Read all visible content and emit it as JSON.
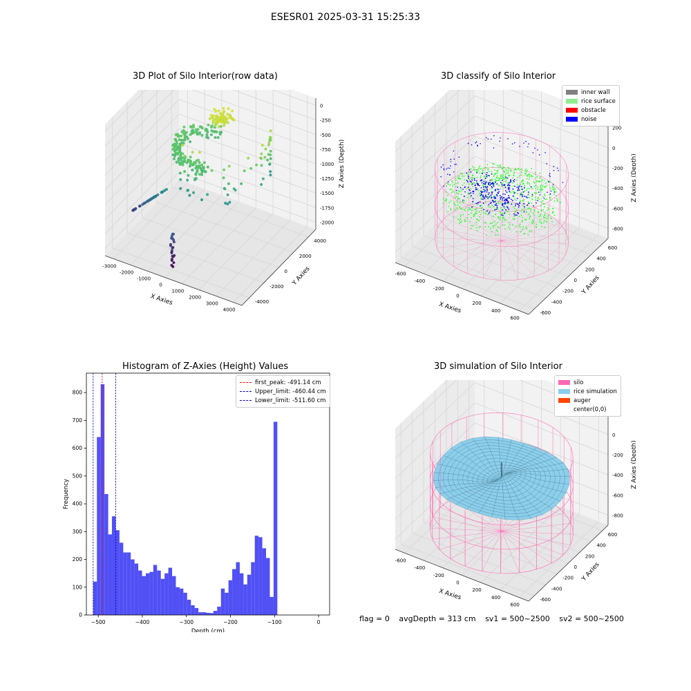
{
  "suptitle": "ESESR01 2025-03-31 15:25:33",
  "footer": {
    "flag": "flag = 0",
    "avg_depth": "avgDepth = 313 cm",
    "sv1": "sv1 = 500~2500",
    "sv2": "sv2 = 500~2500"
  },
  "colors": {
    "inner_wall": "#808080",
    "rice_surface": "#90ee90",
    "obstacle": "#ff0000",
    "noise": "#0000ff",
    "silo": "#ff69b4",
    "rice_simulation": "#87ceeb",
    "auger": "#ff4500",
    "hist_bar": "#5050f5",
    "first_peak": "#ff0000",
    "limits": "#0000cc"
  },
  "chart_data": [
    {
      "type": "scatter3d",
      "title": "3D Plot of Silo Interior(row data)",
      "xlabel": "X Axies",
      "ylabel": "Y Axies",
      "zlabel": "Z Axies (Depth)",
      "xticks": [
        "-3000",
        "-2000",
        "-1000",
        "0",
        "1000",
        "2000",
        "3000",
        "4000"
      ],
      "yticks": [
        "-4000",
        "-2000",
        "0",
        "2000",
        "4000"
      ],
      "zticks": [
        "0",
        "-250",
        "-500",
        "-750",
        "-1000",
        "-1250",
        "-1500",
        "-1750",
        "-2000"
      ],
      "colormap": "viridis"
    },
    {
      "type": "scatter3d",
      "title": "3D classify of Silo Interior",
      "xlabel": "X Axies",
      "ylabel": "Y Axies",
      "zlabel": "Z Axies (Depth)",
      "xticks": [
        "-600",
        "-400",
        "-200",
        "0",
        "200",
        "400",
        "600"
      ],
      "yticks": [
        "-600",
        "-400",
        "-200",
        "0",
        "200",
        "400",
        "600"
      ],
      "zticks": [
        "200",
        "0",
        "-200",
        "-400",
        "-600",
        "-800"
      ],
      "legend": [
        "inner wall",
        "rice surface",
        "obstacle",
        "noise"
      ],
      "legend_loc": "upper right"
    },
    {
      "type": "bar",
      "title": "Histogram of Z-Axies (Height) Values",
      "xlabel": "Depth (cm)",
      "ylabel": "Frequency",
      "xlim": [
        -527,
        25
      ],
      "ylim": [
        0,
        870
      ],
      "xticks": [
        -500,
        -400,
        -300,
        -200,
        -100,
        0
      ],
      "yticks": [
        0,
        100,
        200,
        300,
        400,
        500,
        600,
        700,
        800
      ],
      "bin_start": -511.6,
      "bin_width": 8.53,
      "values": [
        120,
        640,
        830,
        435,
        290,
        355,
        305,
        260,
        225,
        225,
        200,
        185,
        160,
        140,
        150,
        155,
        180,
        160,
        130,
        150,
        170,
        140,
        100,
        95,
        80,
        55,
        35,
        25,
        10,
        10,
        8,
        7,
        15,
        30,
        95,
        80,
        125,
        165,
        190,
        150,
        110,
        145,
        190,
        285,
        280,
        240,
        205,
        65,
        695
      ],
      "lines": [
        {
          "label": "first_peak: -491.14 cm",
          "x": -491.14,
          "color": "#ff0000"
        },
        {
          "label": "Upper_limit: -460.44 cm",
          "x": -460.44,
          "color": "#0000cc"
        },
        {
          "label": "Lower_limit: -511.60 cm",
          "x": -511.6,
          "color": "#0000cc"
        }
      ],
      "legend_loc": "upper right"
    },
    {
      "type": "surface3d",
      "title": "3D simulation of Silo Interior",
      "xlabel": "X Axies",
      "ylabel": "Y Axies",
      "zlabel": "Z Axies (Depth)",
      "xticks": [
        "-600",
        "-400",
        "-200",
        "0",
        "200",
        "400",
        "600"
      ],
      "yticks": [
        "-600",
        "-400",
        "-200",
        "0",
        "200",
        "400",
        "600"
      ],
      "zticks": [
        "200",
        "0",
        "-200",
        "-400",
        "-600",
        "-800"
      ],
      "legend": [
        "silo",
        "rice simulation",
        "auger",
        "center(0,0)"
      ],
      "legend_loc": "upper right"
    }
  ]
}
